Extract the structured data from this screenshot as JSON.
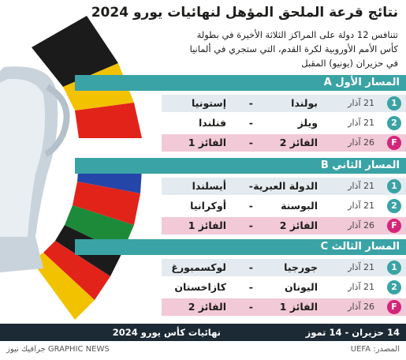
{
  "header": {
    "title": "نتائج قرعة الملحق المؤهل لنهائيات يورو 2024",
    "subtitle": [
      "تتنافس 12 دولة على المراكز الثلاثة الأخيرة في بطولة",
      "كأس الأمم الأوروبية لكرة القدم، التي ستجري في ألمانيا",
      "في حزيران (يونيو) المقبل"
    ]
  },
  "paths": [
    {
      "title": "المسار الأول A",
      "matches": [
        {
          "label": "1",
          "date": "21 آذار",
          "home": "بولندا",
          "separator": "-",
          "away": "إستونيا"
        },
        {
          "label": "2",
          "date": "21 آذار",
          "home": "ويلز",
          "separator": "-",
          "away": "فنلندا"
        },
        {
          "label": "F",
          "date": "26 آذار",
          "home": "الفائز 2",
          "separator": "-",
          "away": "الفائز 1"
        }
      ]
    },
    {
      "title": "المسار الثاني B",
      "matches": [
        {
          "label": "1",
          "date": "21 آذار",
          "home": "الدولة العبرية",
          "separator": "-",
          "away": "أيسلندا"
        },
        {
          "label": "2",
          "date": "21 آذار",
          "home": "البوسنة",
          "separator": "-",
          "away": "أوكرانيا"
        },
        {
          "label": "F",
          "date": "26 آذار",
          "home": "الفائز 2",
          "separator": "-",
          "away": "الفائز 1"
        }
      ]
    },
    {
      "title": "المسار الثالث C",
      "matches": [
        {
          "label": "1",
          "date": "21 آذار",
          "home": "جورجيا",
          "separator": "-",
          "away": "لوكسمبورغ"
        },
        {
          "label": "2",
          "date": "21 آذار",
          "home": "اليونان",
          "separator": "-",
          "away": "كازاخستان"
        },
        {
          "label": "F",
          "date": "26 آذار",
          "home": "الفائز 1",
          "separator": "-",
          "away": "الفائز 2"
        }
      ]
    }
  ],
  "footer": {
    "dates": "14 حزيران - 14 تموز",
    "event": "نهائيات كأس يورو 2024",
    "source": "المصدر: UEFA",
    "credit": "GRAPHIC NEWS جرافيك نيوز"
  }
}
